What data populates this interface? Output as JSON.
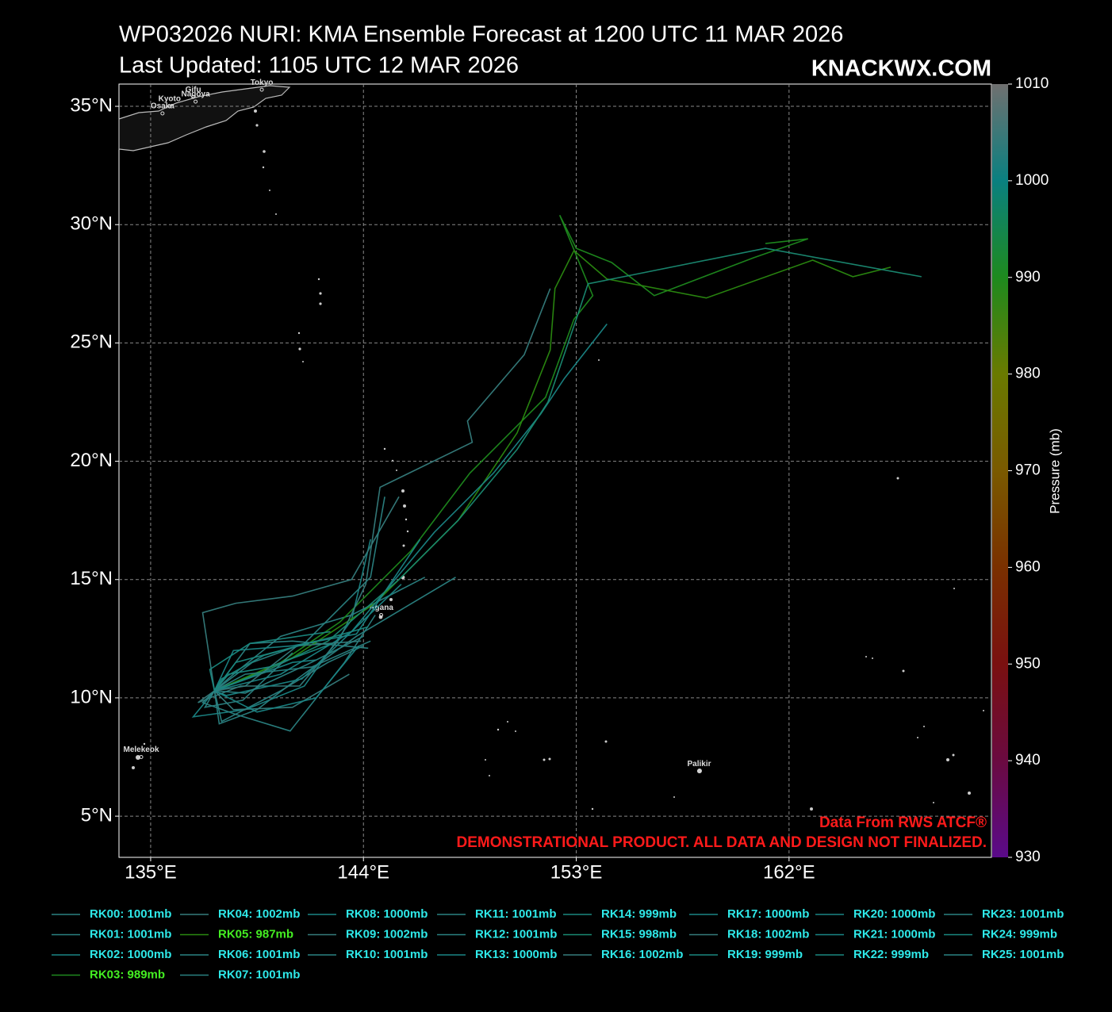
{
  "chart_data": {
    "type": "map",
    "title": "WP032026 NURI: KMA Ensemble Forecast at 1200 UTC 11 MAR 2026",
    "subtitle": "Last Updated: 1105 UTC 12 MAR 2026",
    "brand": "KNACKWX.COM",
    "annotations": [
      "Data From RWS ATCF®",
      "DEMONSTRATIONAL PRODUCT. ALL DATA AND DESIGN NOT FINALIZED."
    ],
    "annotation_color": "#ff1a1a",
    "grid": true,
    "xlim": [
      133.66,
      170.56
    ],
    "ylim": [
      3.26,
      35.94
    ],
    "xticks": [
      {
        "value": 135,
        "label": "135°E"
      },
      {
        "value": 144,
        "label": "144°E"
      },
      {
        "value": 153,
        "label": "153°E"
      },
      {
        "value": 162,
        "label": "162°E"
      }
    ],
    "yticks": [
      {
        "value": 5,
        "label": "5°N"
      },
      {
        "value": 10,
        "label": "10°N"
      },
      {
        "value": 15,
        "label": "15°N"
      },
      {
        "value": 20,
        "label": "20°N"
      },
      {
        "value": 25,
        "label": "25°N"
      },
      {
        "value": 30,
        "label": "30°N"
      },
      {
        "value": 35,
        "label": "35°N"
      }
    ],
    "colorbar": {
      "label": "Pressure (mb)",
      "lim": [
        930,
        1010
      ],
      "ticks": [
        930,
        940,
        950,
        960,
        970,
        980,
        990,
        1000,
        1010
      ],
      "colors": [
        "#5a0a8a",
        "#6a0a40",
        "#7a1010",
        "#7a3000",
        "#7a5a00",
        "#6a7a00",
        "#1e8a1e",
        "#0a8080",
        "#707070"
      ]
    },
    "places": [
      {
        "label": "Tokyo",
        "lon": 139.7,
        "lat": 35.7
      },
      {
        "label": "Gifu",
        "lon": 136.8,
        "lat": 35.4
      },
      {
        "label": "Nagoya",
        "lon": 136.9,
        "lat": 35.2
      },
      {
        "label": "Kyoto",
        "lon": 135.8,
        "lat": 35.0
      },
      {
        "label": "Osaka",
        "lon": 135.5,
        "lat": 34.7
      },
      {
        "label": "Agana",
        "lon": 144.75,
        "lat": 13.5
      },
      {
        "label": "Melekeok",
        "lon": 134.6,
        "lat": 7.5
      },
      {
        "label": "Palikir",
        "lon": 158.2,
        "lat": 6.9
      }
    ],
    "series": [
      {
        "name": "RK00: 1001mb",
        "color": "#2a8282",
        "text_color": "#2ee8e8",
        "lon": [
          137.7,
          139.2,
          141,
          144.2
        ],
        "lat": [
          10.3,
          12.3,
          12.4,
          12.1
        ]
      },
      {
        "name": "RK01: 1001mb",
        "color": "#2a8282",
        "text_color": "#2ee8e8",
        "lon": [
          137.7,
          138.5,
          140.5,
          143.5,
          146.6
        ],
        "lat": [
          10.3,
          11,
          12.6,
          13.5,
          15.1
        ]
      },
      {
        "name": "RK02: 1000mb",
        "color": "#1a8585",
        "text_color": "#2ee8e8",
        "lon": [
          137.7,
          136.8,
          139,
          141.5,
          143.5,
          144.3
        ],
        "lat": [
          10.3,
          9.2,
          9.5,
          10.5,
          13.3,
          16.7
        ]
      },
      {
        "name": "RK03: 989mb",
        "color": "#1e8a1e",
        "text_color": "#44ee22",
        "lon": [
          137.7,
          140.5,
          143,
          146,
          148.5,
          151.7,
          152.9,
          153.7,
          152.3,
          153,
          154.5,
          156.3,
          160.5,
          162.8,
          161
        ],
        "lat": [
          10.3,
          11.5,
          13.2,
          16.2,
          19.5,
          22.7,
          26,
          27,
          30.4,
          29,
          28.4,
          27,
          28.6,
          29.4,
          29.2
        ]
      },
      {
        "name": "RK04: 1002mb",
        "color": "#357c7c",
        "text_color": "#2ee8e8",
        "lon": [
          137.7,
          137.2,
          138.6,
          141,
          143.5,
          145.5
        ],
        "lat": [
          10.3,
          13.6,
          14,
          14.3,
          15,
          18.5
        ]
      },
      {
        "name": "RK05: 987mb",
        "color": "#2a8a10",
        "text_color": "#44ee22",
        "lon": [
          137.7,
          141,
          144.5,
          148,
          150.5,
          151.9,
          152.1,
          152.9,
          154.3,
          158.5,
          163,
          164.7,
          166.3
        ],
        "lat": [
          10.3,
          11.7,
          14,
          17.5,
          21.2,
          24.7,
          27.3,
          28.9,
          27.7,
          26.9,
          28.5,
          27.8,
          28.2
        ]
      },
      {
        "name": "RK06: 1001mb",
        "color": "#2a8282",
        "text_color": "#2ee8e8",
        "lon": [
          137.7,
          138,
          140.5,
          142.5,
          144
        ],
        "lat": [
          10.3,
          9,
          10.3,
          11.5,
          12.2
        ]
      },
      {
        "name": "RK07: 1001mb",
        "color": "#2a8282",
        "text_color": "#2ee8e8",
        "lon": [
          137.7,
          139.3,
          141.5,
          142.3,
          144.3,
          144.9
        ],
        "lat": [
          10.3,
          11.5,
          12.3,
          13.1,
          15.1,
          18.5
        ]
      },
      {
        "name": "RK08: 1000mb",
        "color": "#1a8585",
        "text_color": "#2ee8e8",
        "lon": [
          137.7,
          138.5,
          141,
          143.7,
          146.4
        ],
        "lat": [
          10.3,
          12,
          12.2,
          12.7,
          16.7
        ]
      },
      {
        "name": "RK09: 1002mb",
        "color": "#357c7c",
        "text_color": "#2ee8e8",
        "lon": [
          137.7,
          137,
          138.8,
          141.3,
          143,
          144.1,
          144.7,
          148.6,
          148.4,
          150.8,
          151.9
        ],
        "lat": [
          10.3,
          9.8,
          10.5,
          10.5,
          12.5,
          14.8,
          18.9,
          20.8,
          21.7,
          24.5,
          27.3
        ]
      },
      {
        "name": "RK10: 1001mb",
        "color": "#2a8282",
        "text_color": "#2ee8e8",
        "lon": [
          137.7,
          137.2,
          138.6,
          140.9,
          143.2,
          144.5
        ],
        "lat": [
          10.3,
          9.8,
          9.3,
          8.6,
          11.5,
          13.5
        ]
      },
      {
        "name": "RK11: 1001mb",
        "color": "#2a8282",
        "text_color": "#2ee8e8",
        "lon": [
          137.7,
          139,
          141.8,
          144.3
        ],
        "lat": [
          10.3,
          11,
          11.3,
          12.4
        ]
      },
      {
        "name": "RK12: 1001mb",
        "color": "#2a8282",
        "text_color": "#2ee8e8",
        "lon": [
          137.7,
          137.9,
          139.5,
          141.2,
          143.7,
          147.9
        ],
        "lat": [
          10.3,
          8.9,
          9.5,
          10.8,
          12.6,
          15.1
        ]
      },
      {
        "name": "RK13: 1000mb",
        "color": "#1a8585",
        "text_color": "#2ee8e8",
        "lon": [
          137.7,
          140.5,
          143.5,
          147,
          149.5,
          151.5,
          152.5,
          154.3
        ],
        "lat": [
          10.3,
          11,
          12.8,
          17,
          19.5,
          22,
          23.5,
          25.8
        ]
      },
      {
        "name": "RK14: 999mb",
        "color": "#1a8880",
        "text_color": "#2ee8e8",
        "lon": [
          137.7,
          138.6,
          140.5,
          142.8,
          144.2
        ],
        "lat": [
          10.3,
          11.5,
          12,
          12.6,
          13
        ]
      },
      {
        "name": "RK15: 998mb",
        "color": "#1a8a72",
        "text_color": "#2ee8e8",
        "lon": [
          137.7,
          140,
          142.5,
          145.5,
          148,
          150.5,
          151.8,
          153,
          153.5,
          155,
          161,
          167.6
        ],
        "lat": [
          10.3,
          11.2,
          12.4,
          15,
          17.5,
          20.5,
          22.5,
          26,
          27.5,
          27.8,
          29,
          27.8
        ]
      },
      {
        "name": "RK16: 1002mb",
        "color": "#357c7c",
        "text_color": "#2ee8e8",
        "lon": [
          137.7,
          138.5,
          141,
          143.4
        ],
        "lat": [
          10.3,
          9.5,
          9.6,
          11
        ]
      },
      {
        "name": "RK17: 1000mb",
        "color": "#1a8585",
        "text_color": "#2ee8e8",
        "lon": [
          137.7,
          138.8,
          141,
          142
        ],
        "lat": [
          10.3,
          10.7,
          11.5,
          11.6
        ]
      },
      {
        "name": "RK18: 1002mb",
        "color": "#357c7c",
        "text_color": "#2ee8e8",
        "lon": [
          137.7,
          139,
          141.2,
          143.9
        ],
        "lat": [
          10.3,
          10.5,
          12.2,
          12.4
        ]
      },
      {
        "name": "RK19: 999mb",
        "color": "#1a8880",
        "text_color": "#2ee8e8",
        "lon": [
          137.7,
          137.5,
          139.2,
          142.6
        ],
        "lat": [
          10.3,
          11.2,
          12.3,
          12.8
        ]
      },
      {
        "name": "RK20: 1000mb",
        "color": "#1a8585",
        "text_color": "#2ee8e8",
        "lon": [
          137.7,
          138.2,
          141.4,
          145.6
        ],
        "lat": [
          10.3,
          10.1,
          10.8,
          14.8
        ]
      },
      {
        "name": "RK21: 1000mb",
        "color": "#1a8585",
        "text_color": "#2ee8e8",
        "lon": [
          137.7,
          139.5,
          142,
          143.8
        ],
        "lat": [
          10.3,
          9.4,
          10,
          12.2
        ]
      },
      {
        "name": "RK22: 999mb",
        "color": "#1a8880",
        "text_color": "#2ee8e8",
        "lon": [
          137.7,
          138.3,
          140,
          142.7
        ],
        "lat": [
          10.3,
          11,
          11.3,
          12.3
        ]
      },
      {
        "name": "RK23: 1001mb",
        "color": "#2a8282",
        "text_color": "#2ee8e8",
        "lon": [
          137.7,
          139,
          141.6,
          144
        ],
        "lat": [
          10.3,
          10.2,
          11.4,
          12.6
        ]
      },
      {
        "name": "RK24: 999mb",
        "color": "#1a8880",
        "text_color": "#2ee8e8",
        "lon": [
          137.7,
          138,
          139.8,
          142
        ],
        "lat": [
          10.3,
          10.8,
          11.8,
          12.4
        ]
      },
      {
        "name": "RK25: 1001mb",
        "color": "#2a8282",
        "text_color": "#2ee8e8",
        "lon": [
          137.7,
          137.3,
          138.9,
          141
        ],
        "lat": [
          10.3,
          9.6,
          9.9,
          11.9
        ]
      }
    ]
  }
}
